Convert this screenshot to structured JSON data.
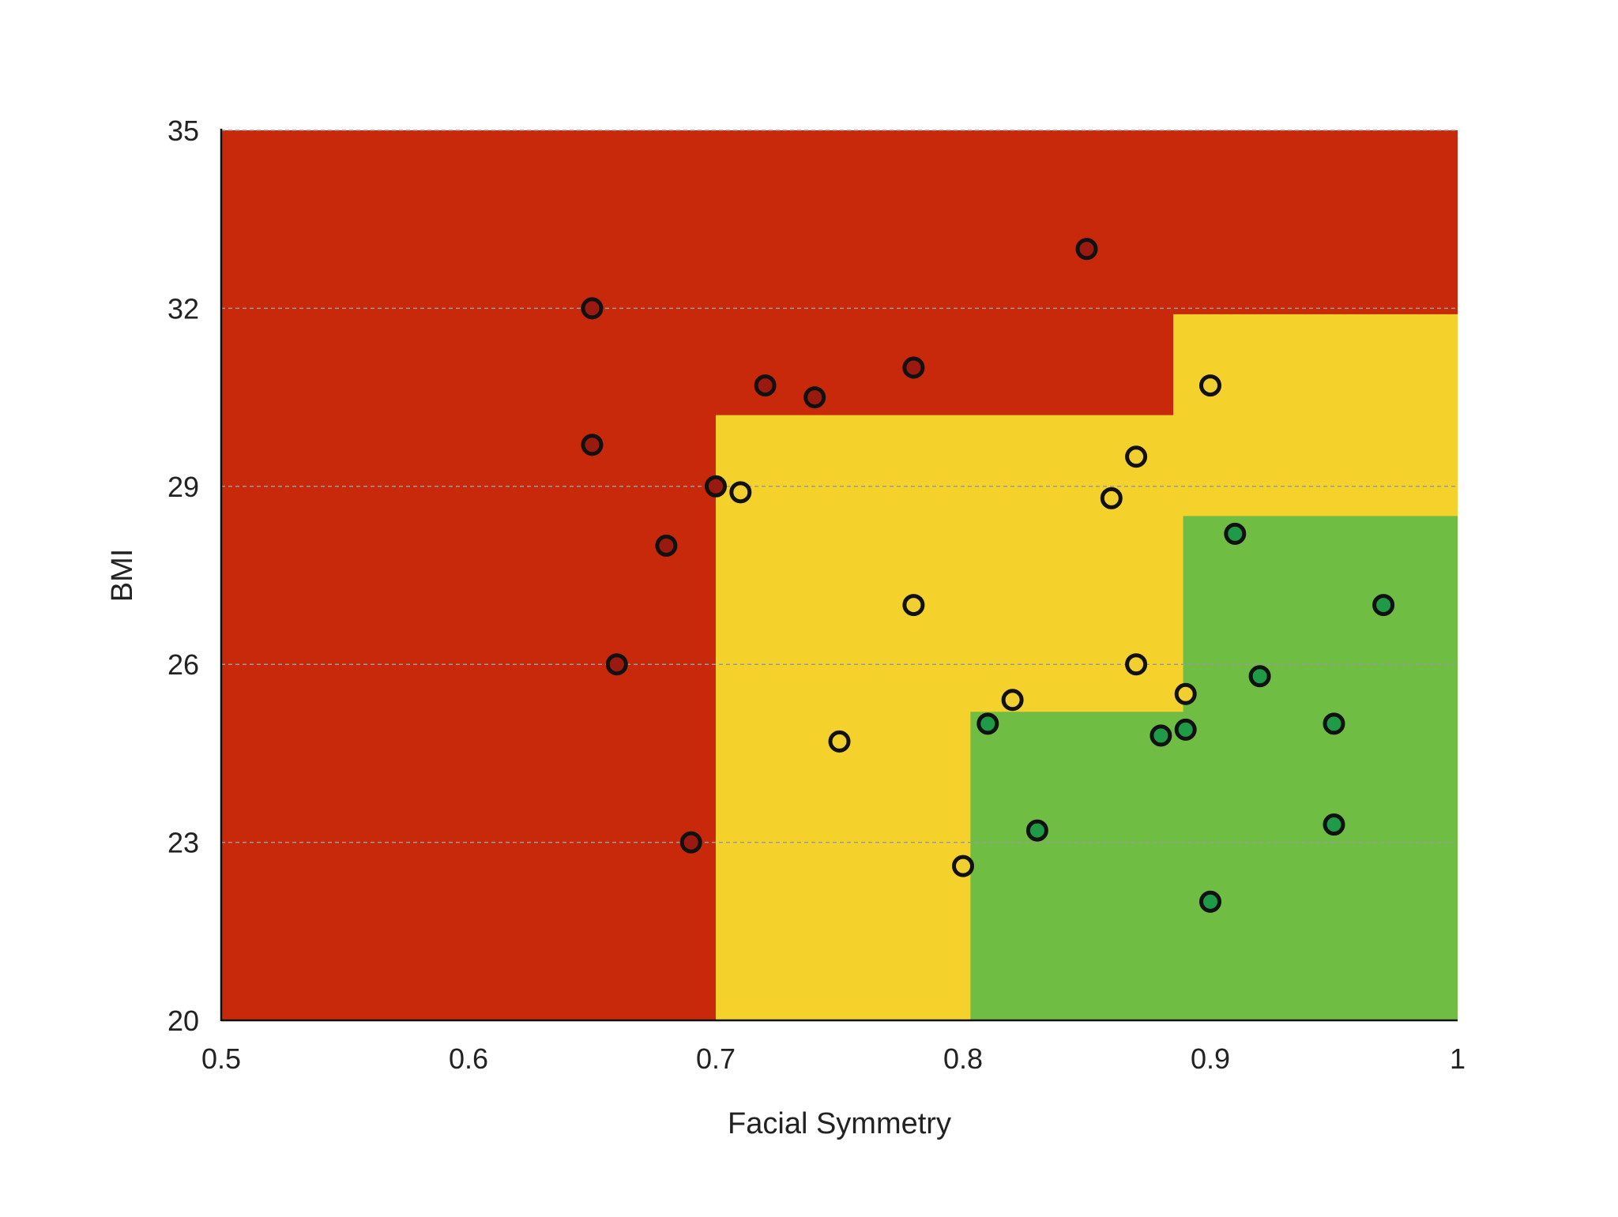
{
  "chart_data": {
    "type": "scatter",
    "title": "",
    "xlabel": "Facial Symmetry",
    "ylabel": "BMI",
    "xlim": [
      0.5,
      1
    ],
    "ylim": [
      20,
      35
    ],
    "x_ticks": [
      0.5,
      0.6,
      0.7,
      0.8,
      0.9,
      1
    ],
    "x_tick_labels": [
      "0.5",
      "0.6",
      "0.7",
      "0.8",
      "0.9",
      "1"
    ],
    "y_ticks": [
      20,
      23,
      26,
      29,
      32,
      35
    ],
    "y_tick_labels": [
      "20",
      "23",
      "26",
      "29",
      "32",
      "35"
    ],
    "grid": "horizontal dashed",
    "legend": "none",
    "colors": {
      "red_zone": "#c8290a",
      "yellow_zone": "#f5d22b",
      "green_zone": "#70bd43",
      "red_point": "#9b1a10",
      "yellow_point": "#f2cf30",
      "green_point": "#1f9a47",
      "point_outline": "#111111",
      "grid": "#9a9a9a",
      "axis": "#111111"
    },
    "regions": [
      {
        "color": "red",
        "x": [
          0.5,
          1.0
        ],
        "y": [
          20,
          35
        ]
      },
      {
        "color": "yellow",
        "x": [
          0.7,
          1.0
        ],
        "y": [
          20,
          30.2
        ]
      },
      {
        "color": "yellow",
        "x": [
          0.885,
          1.0
        ],
        "y": [
          20,
          31.9
        ]
      },
      {
        "color": "green",
        "x": [
          0.803,
          1.0
        ],
        "y": [
          20,
          25.2
        ]
      },
      {
        "color": "green",
        "x": [
          0.889,
          1.0
        ],
        "y": [
          20,
          28.5
        ]
      }
    ],
    "points": [
      {
        "x": 0.65,
        "y": 32.0,
        "group": "red"
      },
      {
        "x": 0.65,
        "y": 29.7,
        "group": "red"
      },
      {
        "x": 0.66,
        "y": 26.0,
        "group": "red"
      },
      {
        "x": 0.68,
        "y": 28.0,
        "group": "red"
      },
      {
        "x": 0.69,
        "y": 23.0,
        "group": "red"
      },
      {
        "x": 0.7,
        "y": 29.0,
        "group": "red"
      },
      {
        "x": 0.72,
        "y": 30.7,
        "group": "red"
      },
      {
        "x": 0.74,
        "y": 30.5,
        "group": "red"
      },
      {
        "x": 0.78,
        "y": 31.0,
        "group": "red"
      },
      {
        "x": 0.85,
        "y": 33.0,
        "group": "red"
      },
      {
        "x": 0.71,
        "y": 28.9,
        "group": "yellow"
      },
      {
        "x": 0.75,
        "y": 24.7,
        "group": "yellow"
      },
      {
        "x": 0.78,
        "y": 27.0,
        "group": "yellow"
      },
      {
        "x": 0.8,
        "y": 22.6,
        "group": "yellow"
      },
      {
        "x": 0.82,
        "y": 25.4,
        "group": "yellow"
      },
      {
        "x": 0.86,
        "y": 28.8,
        "group": "yellow"
      },
      {
        "x": 0.87,
        "y": 29.5,
        "group": "yellow"
      },
      {
        "x": 0.87,
        "y": 26.0,
        "group": "yellow"
      },
      {
        "x": 0.89,
        "y": 25.5,
        "group": "yellow"
      },
      {
        "x": 0.9,
        "y": 30.7,
        "group": "yellow"
      },
      {
        "x": 0.81,
        "y": 25.0,
        "group": "green"
      },
      {
        "x": 0.83,
        "y": 23.2,
        "group": "green"
      },
      {
        "x": 0.88,
        "y": 24.8,
        "group": "green"
      },
      {
        "x": 0.89,
        "y": 24.9,
        "group": "green"
      },
      {
        "x": 0.9,
        "y": 22.0,
        "group": "green"
      },
      {
        "x": 0.91,
        "y": 28.2,
        "group": "green"
      },
      {
        "x": 0.92,
        "y": 25.8,
        "group": "green"
      },
      {
        "x": 0.95,
        "y": 25.0,
        "group": "green"
      },
      {
        "x": 0.95,
        "y": 23.3,
        "group": "green"
      },
      {
        "x": 0.97,
        "y": 27.0,
        "group": "green"
      }
    ]
  }
}
